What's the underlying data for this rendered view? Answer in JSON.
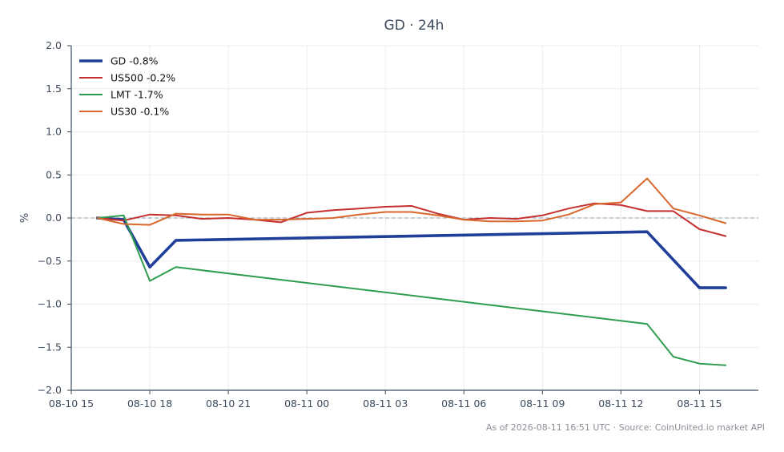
{
  "chart_data": {
    "type": "line",
    "title": "GD · 24h",
    "xlabel": "",
    "ylabel": "%",
    "ylim": [
      -2.0,
      2.0
    ],
    "yticks": [
      -2.0,
      -1.5,
      -1.0,
      -0.5,
      0.0,
      0.5,
      1.0,
      1.5,
      2.0
    ],
    "ytick_labels": [
      "−2.0",
      "−1.5",
      "−1.0",
      "−0.5",
      "0.0",
      "0.5",
      "1.0",
      "1.5",
      "2.0"
    ],
    "xlim": [
      "2026-08-10 15:00",
      "2026-08-11 17:15"
    ],
    "xticks": [
      "2026-08-10 15:00",
      "2026-08-10 18:00",
      "2026-08-10 21:00",
      "2026-08-11 00:00",
      "2026-08-11 03:00",
      "2026-08-11 06:00",
      "2026-08-11 09:00",
      "2026-08-11 12:00",
      "2026-08-11 15:00"
    ],
    "xtick_labels": [
      "08-10 15",
      "08-10 18",
      "08-10 21",
      "08-11 00",
      "08-11 03",
      "08-11 06",
      "08-11 09",
      "08-11 12",
      "08-11 15"
    ],
    "grid": true,
    "zero_line": true,
    "legend_position": "top-left",
    "series": [
      {
        "name": "GD -0.8%",
        "color": "#1f3f9a",
        "points": [
          [
            "2026-08-10 16:00",
            0.0
          ],
          [
            "2026-08-10 17:00",
            -0.02
          ],
          [
            "2026-08-10 18:00",
            -0.57
          ],
          [
            "2026-08-10 19:00",
            -0.26
          ],
          [
            "2026-08-11 13:00",
            -0.16
          ],
          [
            "2026-08-11 15:00",
            -0.81
          ],
          [
            "2026-08-11 16:00",
            -0.81
          ]
        ]
      },
      {
        "name": "US500 -0.2%",
        "color": "#c62f2f",
        "points": [
          [
            "2026-08-10 16:00",
            0.0
          ],
          [
            "2026-08-10 17:00",
            -0.03
          ],
          [
            "2026-08-10 18:00",
            0.04
          ],
          [
            "2026-08-10 19:00",
            0.03
          ],
          [
            "2026-08-10 20:00",
            -0.01
          ],
          [
            "2026-08-10 21:00",
            0.0
          ],
          [
            "2026-08-10 22:00",
            -0.02
          ],
          [
            "2026-08-10 23:00",
            -0.05
          ],
          [
            "2026-08-11 00:00",
            0.06
          ],
          [
            "2026-08-11 01:00",
            0.09
          ],
          [
            "2026-08-11 02:00",
            0.11
          ],
          [
            "2026-08-11 03:00",
            0.13
          ],
          [
            "2026-08-11 04:00",
            0.14
          ],
          [
            "2026-08-11 05:00",
            0.05
          ],
          [
            "2026-08-11 06:00",
            -0.02
          ],
          [
            "2026-08-11 07:00",
            0.0
          ],
          [
            "2026-08-11 08:00",
            -0.01
          ],
          [
            "2026-08-11 09:00",
            0.03
          ],
          [
            "2026-08-11 10:00",
            0.11
          ],
          [
            "2026-08-11 11:00",
            0.17
          ],
          [
            "2026-08-11 12:00",
            0.15
          ],
          [
            "2026-08-11 13:00",
            0.08
          ],
          [
            "2026-08-11 14:00",
            0.08
          ],
          [
            "2026-08-11 15:00",
            -0.13
          ],
          [
            "2026-08-11 16:00",
            -0.21
          ]
        ]
      },
      {
        "name": "LMT -1.7%",
        "color": "#2e9e4e",
        "points": [
          [
            "2026-08-10 16:00",
            0.0
          ],
          [
            "2026-08-10 17:00",
            0.03
          ],
          [
            "2026-08-10 18:00",
            -0.73
          ],
          [
            "2026-08-10 19:00",
            -0.57
          ],
          [
            "2026-08-11 13:00",
            -1.23
          ],
          [
            "2026-08-11 14:00",
            -1.61
          ],
          [
            "2026-08-11 15:00",
            -1.69
          ],
          [
            "2026-08-11 16:00",
            -1.71
          ]
        ]
      },
      {
        "name": "US30 -0.1%",
        "color": "#d9662b",
        "points": [
          [
            "2026-08-10 16:00",
            0.0
          ],
          [
            "2026-08-10 17:00",
            -0.07
          ],
          [
            "2026-08-10 18:00",
            -0.08
          ],
          [
            "2026-08-10 19:00",
            0.05
          ],
          [
            "2026-08-10 20:00",
            0.04
          ],
          [
            "2026-08-10 21:00",
            0.04
          ],
          [
            "2026-08-10 22:00",
            -0.02
          ],
          [
            "2026-08-10 23:00",
            -0.02
          ],
          [
            "2026-08-11 00:00",
            -0.01
          ],
          [
            "2026-08-11 01:00",
            0.0
          ],
          [
            "2026-08-11 02:00",
            0.04
          ],
          [
            "2026-08-11 03:00",
            0.07
          ],
          [
            "2026-08-11 04:00",
            0.07
          ],
          [
            "2026-08-11 05:00",
            0.03
          ],
          [
            "2026-08-11 06:00",
            -0.02
          ],
          [
            "2026-08-11 07:00",
            -0.04
          ],
          [
            "2026-08-11 08:00",
            -0.04
          ],
          [
            "2026-08-11 09:00",
            -0.03
          ],
          [
            "2026-08-11 10:00",
            0.04
          ],
          [
            "2026-08-11 11:00",
            0.16
          ],
          [
            "2026-08-11 12:00",
            0.18
          ],
          [
            "2026-08-11 13:00",
            0.46
          ],
          [
            "2026-08-11 14:00",
            0.11
          ],
          [
            "2026-08-11 15:00",
            0.03
          ],
          [
            "2026-08-11 16:00",
            -0.06
          ]
        ]
      }
    ],
    "footer": "As of 2026-08-11 16:51 UTC · Source: CoinUnited.io market API"
  },
  "colors": {
    "axis": "#3b4a5c",
    "grid": "#ebebeb",
    "zero_line": "#8a9bb0",
    "footer": "#8a8f98"
  }
}
